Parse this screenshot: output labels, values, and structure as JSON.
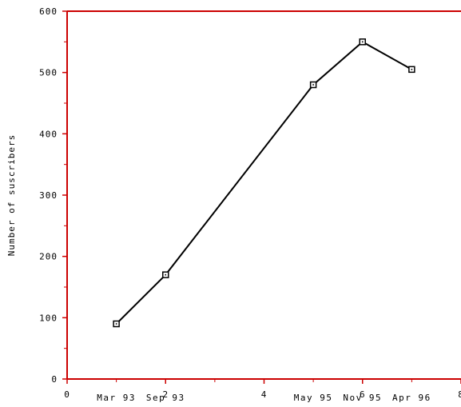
{
  "chart_data": {
    "type": "line",
    "title": "",
    "xlabel": "",
    "ylabel": "Number of suscribers",
    "xlim": [
      0,
      8
    ],
    "ylim": [
      0,
      600
    ],
    "x_ticks": [
      0,
      2,
      4,
      6,
      8
    ],
    "y_ticks": [
      0,
      100,
      200,
      300,
      400,
      500,
      600
    ],
    "grid": false,
    "axis_color": "#cc0000",
    "line_color": "#000000",
    "categories": [
      "Mar 93",
      "Sep 93",
      "May 95",
      "Nov 95",
      "Apr 96"
    ],
    "x": [
      1,
      2,
      5,
      6,
      7
    ],
    "series": [
      {
        "values": [
          90,
          170,
          480,
          550,
          505
        ]
      }
    ]
  }
}
